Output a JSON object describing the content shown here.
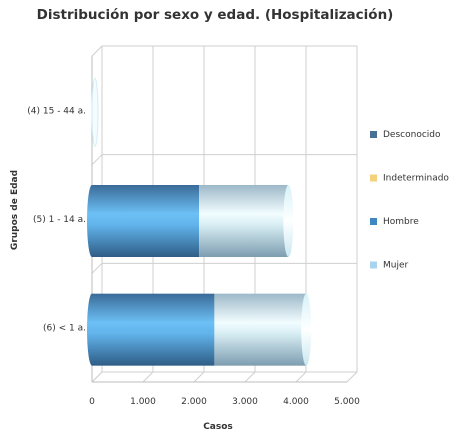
{
  "chart_data": {
    "type": "bar",
    "orientation": "horizontal",
    "stacked": true,
    "three_d": true,
    "title": "Distribución por sexo y edad. (Hospitalización)",
    "xlabel": "Casos",
    "ylabel": "Grupos de Edad",
    "categories": [
      "(4) 15 - 44 a.",
      "(5) 1 - 14 a.",
      "(6) < 1 a."
    ],
    "x_ticks": [
      "0",
      "1.000",
      "2.000",
      "3.000",
      "4.000",
      "5.000"
    ],
    "xlim": [
      0,
      5000
    ],
    "grid": true,
    "legend_position": "right",
    "series": [
      {
        "name": "Desconocido",
        "color": "#4a6f94",
        "values": [
          0,
          0,
          0
        ]
      },
      {
        "name": "Indeterminado",
        "color": "#f2d27a",
        "values": [
          0,
          0,
          0
        ]
      },
      {
        "name": "Hombre",
        "color": "#3f87c2",
        "values": [
          0,
          2100,
          2400
        ]
      },
      {
        "name": "Mujer",
        "color": "#a9d4ee",
        "values": [
          0,
          1750,
          1800
        ]
      }
    ]
  }
}
